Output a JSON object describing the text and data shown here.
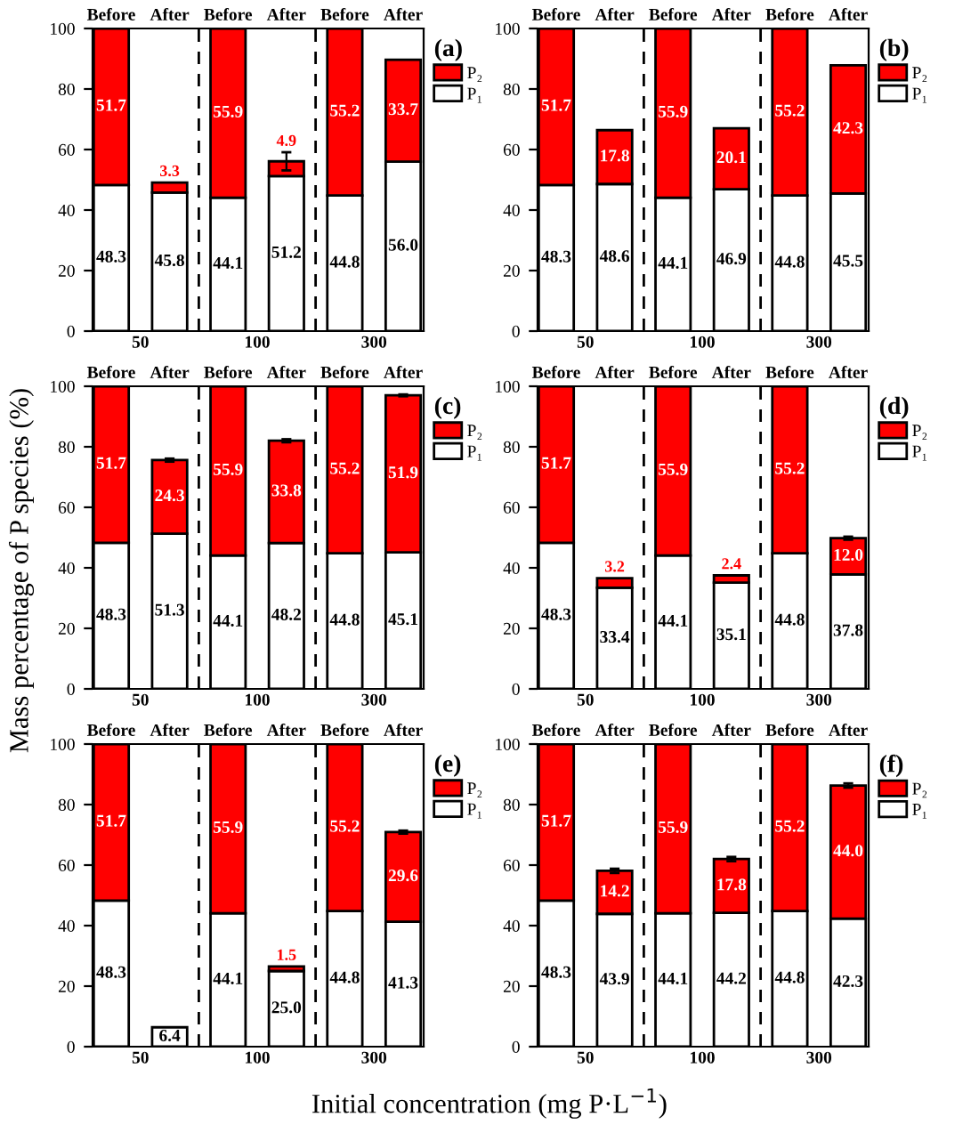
{
  "chart_data": [
    {
      "type": "bar",
      "stacked": true,
      "title": "(a)",
      "ylabel": "Mass percentage of P species (%)",
      "categories": [
        "Before",
        "After",
        "Before",
        "After",
        "Before",
        "After"
      ],
      "annotations": [
        "50",
        "100",
        "300"
      ],
      "ylim": [
        0,
        100
      ],
      "yticks": [
        0,
        20,
        40,
        60,
        80,
        100
      ],
      "legend": "right",
      "grid": false,
      "series": [
        {
          "name": "P₁",
          "color": "#ffffff",
          "values": [
            48.3,
            45.8,
            44.1,
            51.2,
            44.8,
            56.0
          ],
          "value_labels": [
            "48.3",
            "45.8",
            "44.1",
            "51.2",
            "44.8",
            "56.0"
          ]
        },
        {
          "name": "P₂",
          "color": "#ff0000",
          "values": [
            51.7,
            3.3,
            55.9,
            4.9,
            55.2,
            33.7
          ],
          "value_labels": [
            "51.7",
            "3.3",
            "55.9",
            "4.9",
            "55.2",
            "33.7"
          ],
          "errors": [
            null,
            null,
            null,
            3,
            null,
            null
          ]
        }
      ]
    },
    {
      "type": "bar",
      "stacked": true,
      "title": "(b)",
      "categories": [
        "Before",
        "After",
        "Before",
        "After",
        "Before",
        "After"
      ],
      "annotations": [
        "50",
        "100",
        "300"
      ],
      "ylim": [
        0,
        100
      ],
      "yticks": [
        0,
        20,
        40,
        60,
        80,
        100
      ],
      "legend": "right",
      "grid": false,
      "series": [
        {
          "name": "P₁",
          "color": "#ffffff",
          "values": [
            48.3,
            48.6,
            44.1,
            46.9,
            44.8,
            45.5
          ],
          "value_labels": [
            "48.3",
            "48.6",
            "44.1",
            "46.9",
            "44.8",
            "45.5"
          ]
        },
        {
          "name": "P₂",
          "color": "#ff0000",
          "values": [
            51.7,
            17.8,
            55.9,
            20.1,
            55.2,
            42.3
          ],
          "value_labels": [
            "51.7",
            "17.8",
            "55.9",
            "20.1",
            "55.2",
            "42.3"
          ]
        }
      ]
    },
    {
      "type": "bar",
      "stacked": true,
      "title": "(c)",
      "categories": [
        "Before",
        "After",
        "Before",
        "After",
        "Before",
        "After"
      ],
      "annotations": [
        "50",
        "100",
        "300"
      ],
      "ylim": [
        0,
        100
      ],
      "yticks": [
        0,
        20,
        40,
        60,
        80,
        100
      ],
      "legend": "right",
      "grid": false,
      "series": [
        {
          "name": "P₁",
          "color": "#ffffff",
          "values": [
            48.3,
            51.3,
            44.1,
            48.2,
            44.8,
            45.1
          ],
          "value_labels": [
            "48.3",
            "51.3",
            "44.1",
            "48.2",
            "44.8",
            "45.1"
          ]
        },
        {
          "name": "P₂",
          "color": "#ff0000",
          "values": [
            51.7,
            24.3,
            55.9,
            33.8,
            55.2,
            51.9
          ],
          "value_labels": [
            "51.7",
            "24.3",
            "55.9",
            "33.8",
            "55.2",
            "51.9"
          ],
          "errors": [
            null,
            0.5,
            null,
            0.5,
            null,
            0.3
          ]
        }
      ]
    },
    {
      "type": "bar",
      "stacked": true,
      "title": "(d)",
      "categories": [
        "Before",
        "After",
        "Before",
        "After",
        "Before",
        "After"
      ],
      "annotations": [
        "50",
        "100",
        "300"
      ],
      "ylim": [
        0,
        100
      ],
      "yticks": [
        0,
        20,
        40,
        60,
        80,
        100
      ],
      "legend": "right",
      "grid": false,
      "series": [
        {
          "name": "P₁",
          "color": "#ffffff",
          "values": [
            48.3,
            33.4,
            44.1,
            35.1,
            44.8,
            37.8
          ],
          "value_labels": [
            "48.3",
            "33.4",
            "44.1",
            "35.1",
            "44.8",
            "37.8"
          ]
        },
        {
          "name": "P₂",
          "color": "#ff0000",
          "values": [
            51.7,
            3.2,
            55.9,
            2.4,
            55.2,
            12.0
          ],
          "value_labels": [
            "51.7",
            "3.2",
            "55.9",
            "2.4",
            "55.2",
            "12.0"
          ],
          "errors": [
            null,
            null,
            null,
            null,
            null,
            0.5
          ]
        }
      ]
    },
    {
      "type": "bar",
      "stacked": true,
      "title": "(e)",
      "xlabel": "Initial concentration (mg P·L$^{−1}$)",
      "categories": [
        "Before",
        "After",
        "Before",
        "After",
        "Before",
        "After"
      ],
      "annotations": [
        "50",
        "100",
        "300"
      ],
      "ylim": [
        0,
        100
      ],
      "yticks": [
        0,
        20,
        40,
        60,
        80,
        100
      ],
      "legend": "right",
      "grid": false,
      "series": [
        {
          "name": "P₁",
          "color": "#ffffff",
          "values": [
            48.3,
            6.4,
            44.1,
            25.0,
            44.8,
            41.3
          ],
          "value_labels": [
            "48.3",
            "6.4",
            "44.1",
            "25.0",
            "44.8",
            "41.3"
          ]
        },
        {
          "name": "P₂",
          "color": "#ff0000",
          "values": [
            51.7,
            null,
            55.9,
            1.5,
            55.2,
            29.6
          ],
          "value_labels": [
            "51.7",
            null,
            "55.9",
            "1.5",
            "55.2",
            "29.6"
          ],
          "errors": [
            null,
            null,
            null,
            null,
            null,
            0.5
          ]
        }
      ]
    },
    {
      "type": "bar",
      "stacked": true,
      "title": "(f)",
      "categories": [
        "Before",
        "After",
        "Before",
        "After",
        "Before",
        "After"
      ],
      "annotations": [
        "50",
        "100",
        "300"
      ],
      "ylim": [
        0,
        100
      ],
      "yticks": [
        0,
        20,
        40,
        60,
        80,
        100
      ],
      "legend": "right",
      "grid": false,
      "series": [
        {
          "name": "P₁",
          "color": "#ffffff",
          "values": [
            48.3,
            43.9,
            44.1,
            44.2,
            44.8,
            42.3
          ],
          "value_labels": [
            "48.3",
            "43.9",
            "44.1",
            "44.2",
            "44.8",
            "42.3"
          ]
        },
        {
          "name": "P₂",
          "color": "#ff0000",
          "values": [
            51.7,
            14.2,
            55.9,
            17.8,
            55.2,
            44.0
          ],
          "value_labels": [
            "51.7",
            "14.2",
            "55.9",
            "17.8",
            "55.2",
            "44.0"
          ],
          "errors": [
            null,
            0.7,
            null,
            0.7,
            null,
            0.7
          ]
        }
      ]
    }
  ]
}
